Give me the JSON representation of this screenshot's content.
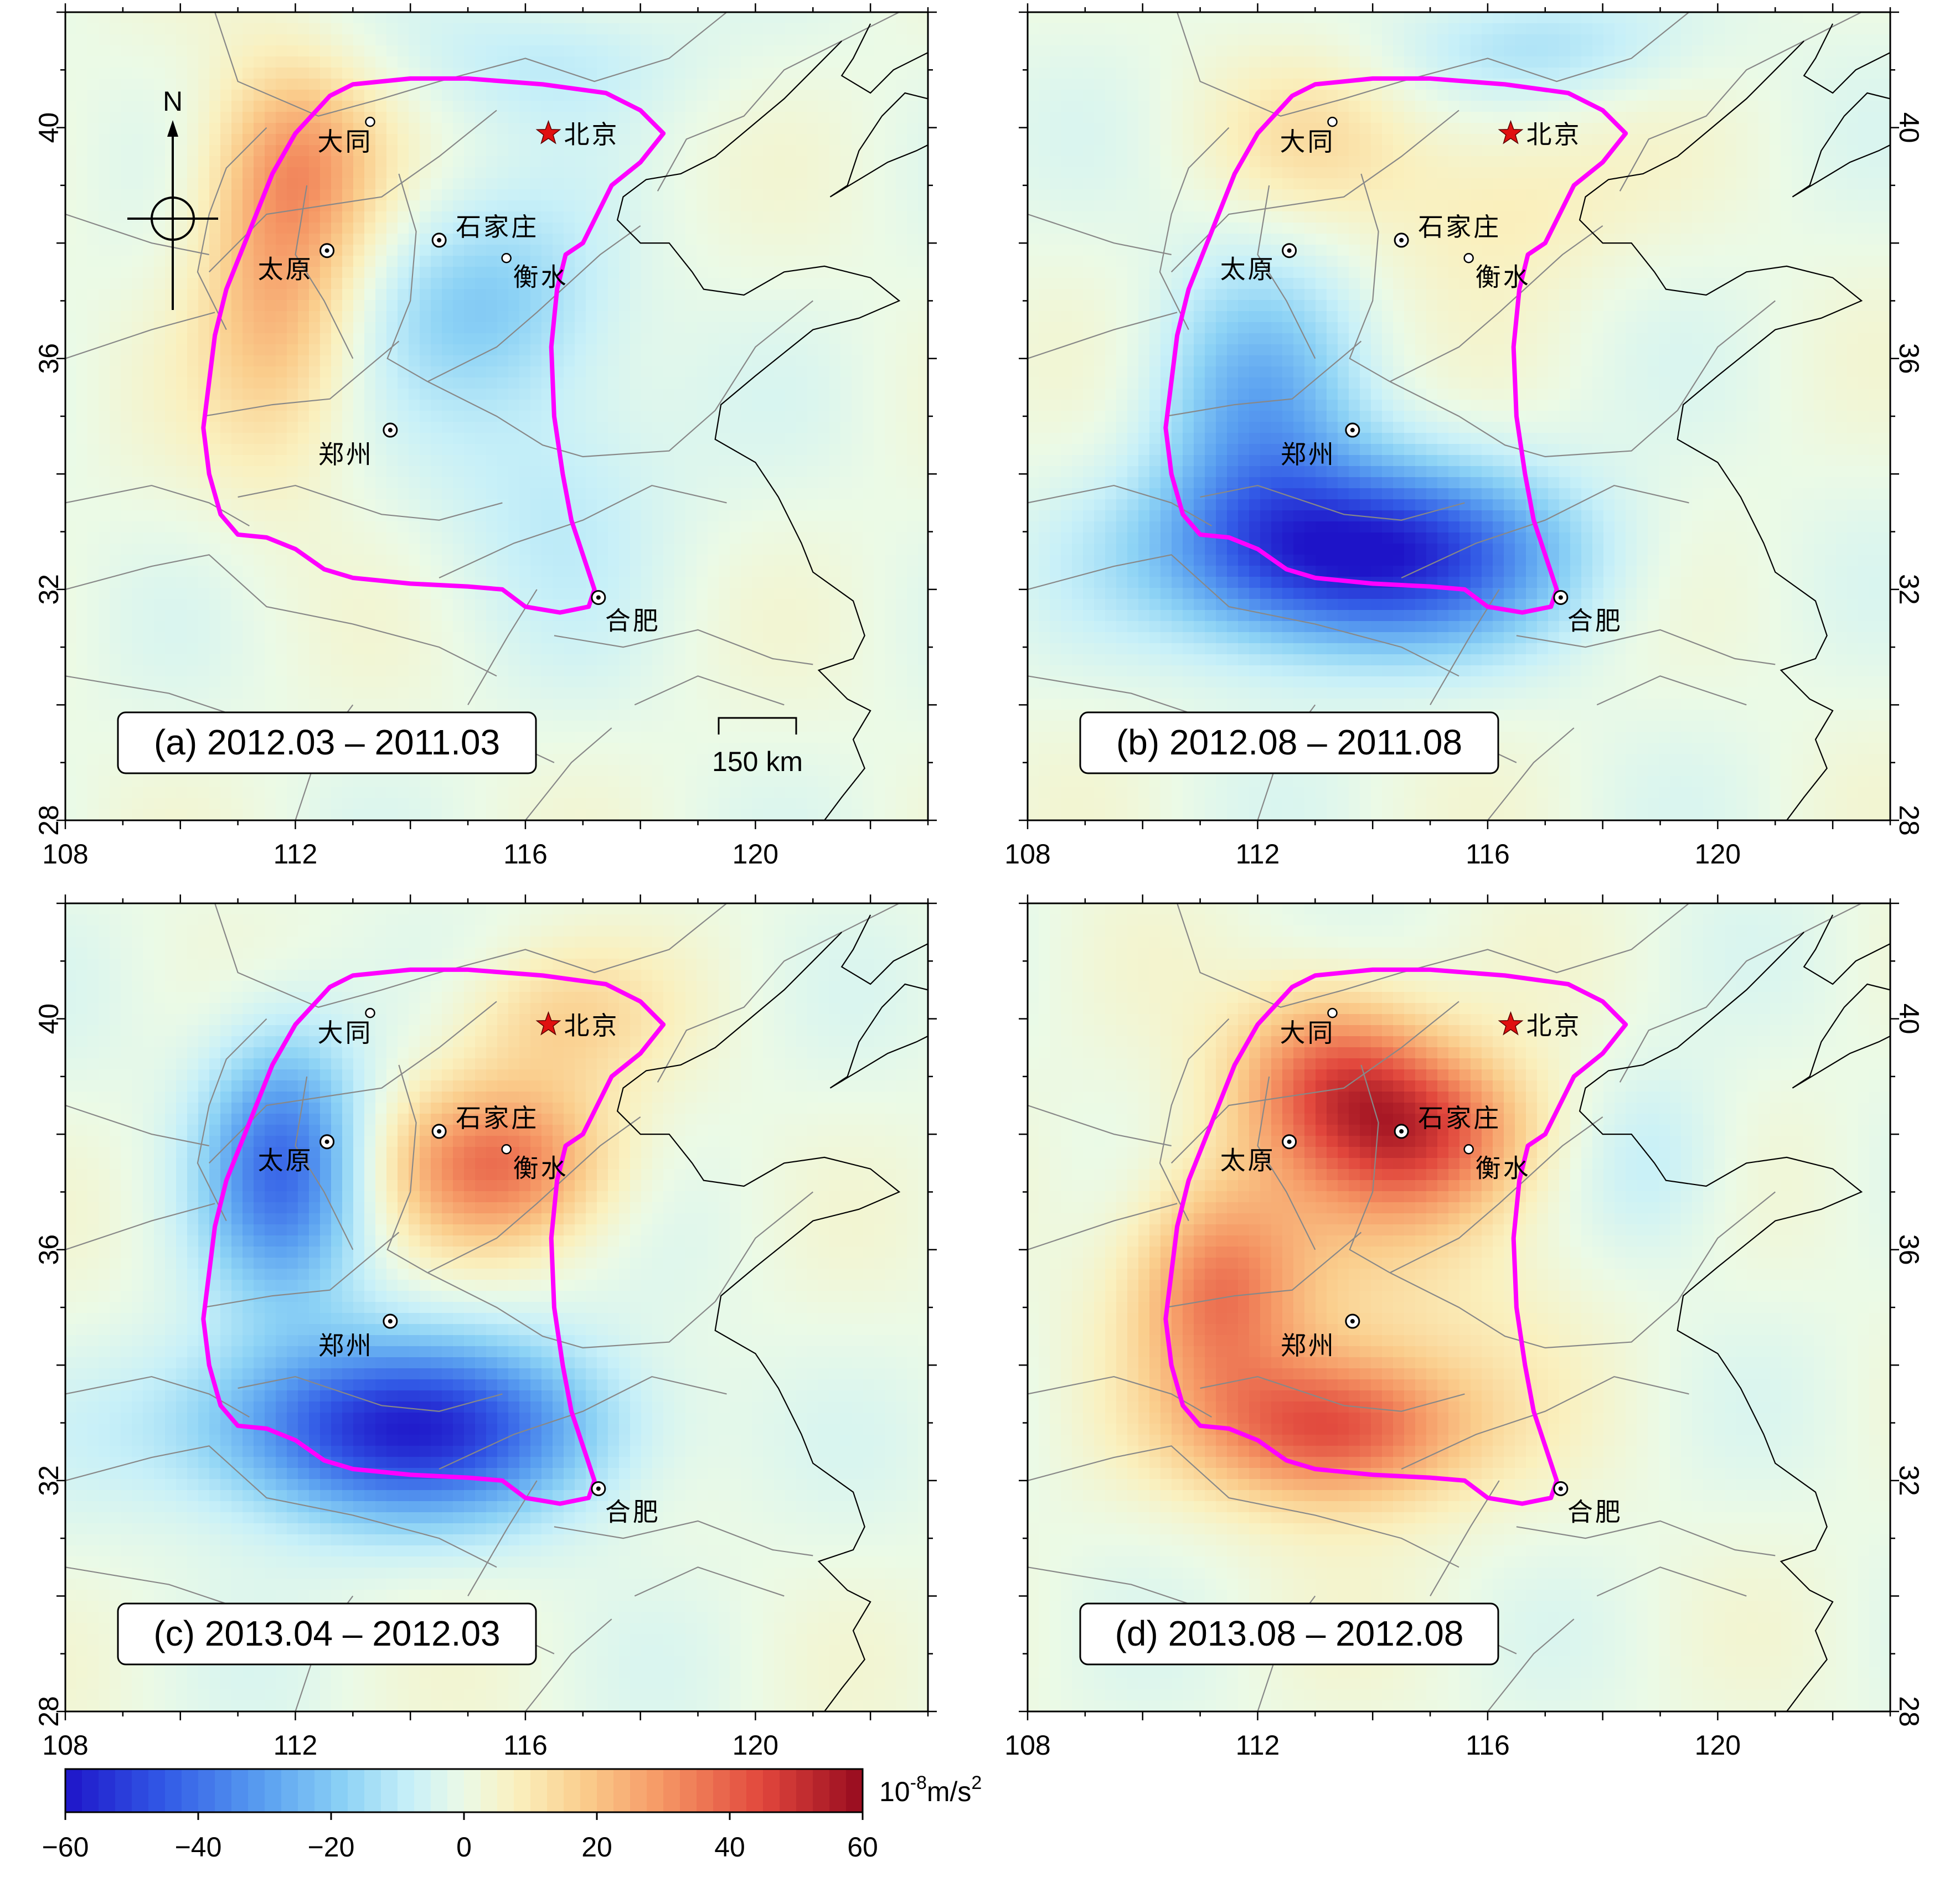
{
  "figure": {
    "panels": [
      {
        "id": "a",
        "title": "(a) 2012.03 – 2011.03",
        "anomalies": [
          {
            "lon": 111.7,
            "lat": 37.5,
            "value": 25,
            "sx": 1.0,
            "sy": 2.2
          },
          {
            "lon": 112.2,
            "lat": 39.5,
            "value": 15,
            "sx": 1.0,
            "sy": 1.1
          },
          {
            "lon": 115.2,
            "lat": 37.0,
            "value": -18,
            "sx": 1.4,
            "sy": 1.2
          },
          {
            "lon": 116.5,
            "lat": 34.0,
            "value": -10,
            "sx": 1.5,
            "sy": 1.8
          },
          {
            "lon": 116.3,
            "lat": 41.2,
            "value": -9,
            "sx": 1.8,
            "sy": 0.8
          }
        ]
      },
      {
        "id": "b",
        "title": "(b) 2012.08 – 2011.08",
        "anomalies": [
          {
            "lon": 113.8,
            "lat": 32.6,
            "value": -60,
            "sx": 2.3,
            "sy": 1.1
          },
          {
            "lon": 112.0,
            "lat": 35.0,
            "value": -25,
            "sx": 1.2,
            "sy": 1.8
          },
          {
            "lon": 117.0,
            "lat": 41.4,
            "value": -12,
            "sx": 1.8,
            "sy": 0.7
          },
          {
            "lon": 113.0,
            "lat": 39.8,
            "value": 10,
            "sx": 1.3,
            "sy": 1.0
          },
          {
            "lon": 116.2,
            "lat": 38.8,
            "value": 10,
            "sx": 1.6,
            "sy": 1.2
          }
        ]
      },
      {
        "id": "c",
        "title": "(c) 2013.04 – 2012.03",
        "anomalies": [
          {
            "lon": 113.8,
            "lat": 32.9,
            "value": -55,
            "sx": 2.4,
            "sy": 1.1
          },
          {
            "lon": 111.8,
            "lat": 37.5,
            "value": -40,
            "sx": 1.0,
            "sy": 1.6
          },
          {
            "lon": 115.5,
            "lat": 37.5,
            "value": 35,
            "sx": 1.4,
            "sy": 1.0
          },
          {
            "lon": 116.5,
            "lat": 40.0,
            "value": 15,
            "sx": 1.3,
            "sy": 0.9
          }
        ]
      },
      {
        "id": "d",
        "title": "(d) 2013.08 – 2012.08",
        "anomalies": [
          {
            "lon": 113.3,
            "lat": 32.9,
            "value": 40,
            "sx": 1.6,
            "sy": 0.9
          },
          {
            "lon": 113.3,
            "lat": 39.0,
            "value": 33,
            "sx": 1.2,
            "sy": 1.1
          },
          {
            "lon": 115.0,
            "lat": 38.0,
            "value": 35,
            "sx": 1.3,
            "sy": 1.0
          },
          {
            "lon": 111.3,
            "lat": 35.3,
            "value": 28,
            "sx": 1.0,
            "sy": 1.3
          },
          {
            "lon": 113.5,
            "lat": 35.5,
            "value": 12,
            "sx": 2.5,
            "sy": 2.5
          },
          {
            "lon": 119.0,
            "lat": 37.5,
            "value": -9,
            "sx": 1.0,
            "sy": 1.2
          }
        ]
      }
    ],
    "axes": {
      "lon_range": [
        108,
        123
      ],
      "lat_range": [
        28,
        42
      ],
      "x_ticks": [
        {
          "lon": 108,
          "label": "108"
        },
        {
          "lon": 112,
          "label": "112"
        },
        {
          "lon": 116,
          "label": "116"
        },
        {
          "lon": 120,
          "label": "120"
        }
      ],
      "y_ticks": [
        {
          "lat": 28,
          "label": "28"
        },
        {
          "lat": 32,
          "label": "32"
        },
        {
          "lat": 36,
          "label": "36"
        },
        {
          "lat": 40,
          "label": "40"
        }
      ]
    },
    "cities": [
      {
        "name": "大同",
        "lon": 113.3,
        "lat": 40.1,
        "marker": "circle-small"
      },
      {
        "name": "北京",
        "lon": 116.4,
        "lat": 39.9,
        "marker": "star"
      },
      {
        "name": "石家庄",
        "lon": 114.5,
        "lat": 38.05,
        "marker": "circle-dot"
      },
      {
        "name": "太原",
        "lon": 112.55,
        "lat": 37.87,
        "marker": "circle-dot"
      },
      {
        "name": "衡水",
        "lon": 115.67,
        "lat": 37.74,
        "marker": "circle-small"
      },
      {
        "name": "郑州",
        "lon": 113.65,
        "lat": 34.76,
        "marker": "circle-dot"
      },
      {
        "name": "合肥",
        "lon": 117.27,
        "lat": 31.86,
        "marker": "circle-dot"
      }
    ],
    "compass": {
      "label": "N"
    },
    "scale_bar": {
      "label": "150 km"
    },
    "colorbar": {
      "unit_base": "10",
      "unit_exp": "-8",
      "unit_rest": "m/s",
      "unit_sq": "2",
      "ticks": [
        "−60",
        "−40",
        "−20",
        "0",
        "20",
        "40",
        "60"
      ],
      "min": -60,
      "max": 60
    },
    "colors": {
      "boundary": "#ff00ff",
      "star": "#e01010",
      "province_lines": "#888888",
      "coast": "#000000"
    }
  }
}
